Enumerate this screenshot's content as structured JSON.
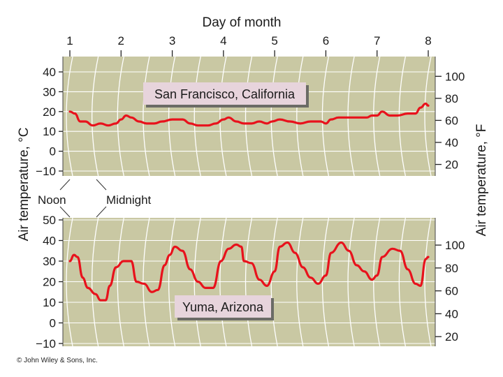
{
  "chart_data": {
    "type": "line",
    "top_label": "Day of month",
    "x_ticks": [
      "1",
      "2",
      "3",
      "4",
      "5",
      "6",
      "7",
      "8"
    ],
    "xlim": [
      1,
      8
    ],
    "left_label": "Air temperature, °C",
    "right_label": "Air temperature, °F",
    "annotations": [
      "Noon",
      "Midnight"
    ],
    "colors": {
      "line": "#e8121c",
      "panel": "#c9c8a3",
      "annotation_box": "#e7d4dc"
    },
    "panels": [
      {
        "name": "San Francisco, California",
        "c_ticks": [
          "40",
          "30",
          "20",
          "10",
          "0",
          "−10"
        ],
        "c_values": [
          40,
          30,
          20,
          10,
          0,
          -10
        ],
        "ylim_c": [
          -10,
          40
        ],
        "f_ticks": [
          "100",
          "80",
          "60",
          "40",
          "20"
        ],
        "f_values": [
          100,
          80,
          60,
          40,
          20
        ],
        "series": {
          "x": [
            1.0,
            1.1,
            1.2,
            1.3,
            1.45,
            1.6,
            1.75,
            1.9,
            2.0,
            2.1,
            2.2,
            2.35,
            2.5,
            2.65,
            2.8,
            3.0,
            3.2,
            3.35,
            3.5,
            3.7,
            3.85,
            4.0,
            4.1,
            4.25,
            4.4,
            4.55,
            4.7,
            4.85,
            4.95,
            5.1,
            5.3,
            5.5,
            5.7,
            5.9,
            6.0,
            6.1,
            6.25,
            6.4,
            6.6,
            6.8,
            6.9,
            7.0,
            7.1,
            7.25,
            7.4,
            7.6,
            7.75,
            7.85,
            7.95,
            8.0
          ],
          "y": [
            20,
            19,
            15,
            15,
            13,
            14,
            13,
            14,
            16,
            18,
            17,
            15,
            14,
            14,
            15,
            16,
            16,
            14,
            13,
            13,
            14,
            16,
            17,
            15,
            14,
            14,
            15,
            14,
            15,
            16,
            15,
            14,
            15,
            15,
            14,
            16,
            17,
            17,
            17,
            17,
            18,
            18,
            20,
            18,
            18,
            19,
            19,
            22,
            24,
            23
          ]
        }
      },
      {
        "name": "Yuma, Arizona",
        "c_ticks": [
          "50",
          "40",
          "30",
          "20",
          "10",
          "0",
          "−10"
        ],
        "c_values": [
          50,
          40,
          30,
          20,
          10,
          0,
          -10
        ],
        "ylim_c": [
          -10,
          50
        ],
        "f_ticks": [
          "100",
          "80",
          "60",
          "40",
          "20"
        ],
        "f_values": [
          100,
          80,
          60,
          40,
          20
        ],
        "series": {
          "x": [
            1.0,
            1.08,
            1.15,
            1.25,
            1.35,
            1.5,
            1.6,
            1.7,
            1.78,
            1.9,
            2.05,
            2.2,
            2.3,
            2.45,
            2.6,
            2.72,
            2.85,
            2.95,
            3.05,
            3.2,
            3.35,
            3.5,
            3.65,
            3.8,
            3.95,
            4.1,
            4.25,
            4.35,
            4.4,
            4.55,
            4.7,
            4.85,
            5.0,
            5.1,
            5.25,
            5.4,
            5.55,
            5.7,
            5.85,
            6.0,
            6.1,
            6.3,
            6.45,
            6.6,
            6.75,
            6.9,
            7.0,
            7.1,
            7.3,
            7.45,
            7.6,
            7.75,
            7.85,
            7.95,
            8.0
          ],
          "y": [
            30,
            33,
            32,
            22,
            17,
            14,
            11,
            11,
            18,
            27,
            30,
            30,
            20,
            19,
            15,
            16,
            28,
            33,
            37,
            35,
            26,
            20,
            17,
            17,
            30,
            36,
            38,
            37,
            30,
            29,
            21,
            18,
            25,
            37,
            39,
            34,
            27,
            22,
            19,
            23,
            34,
            39,
            35,
            28,
            25,
            21,
            23,
            32,
            36,
            35,
            26,
            19,
            18,
            31,
            32
          ]
        }
      }
    ]
  },
  "copyright": "© John Wiley & Sons, Inc."
}
